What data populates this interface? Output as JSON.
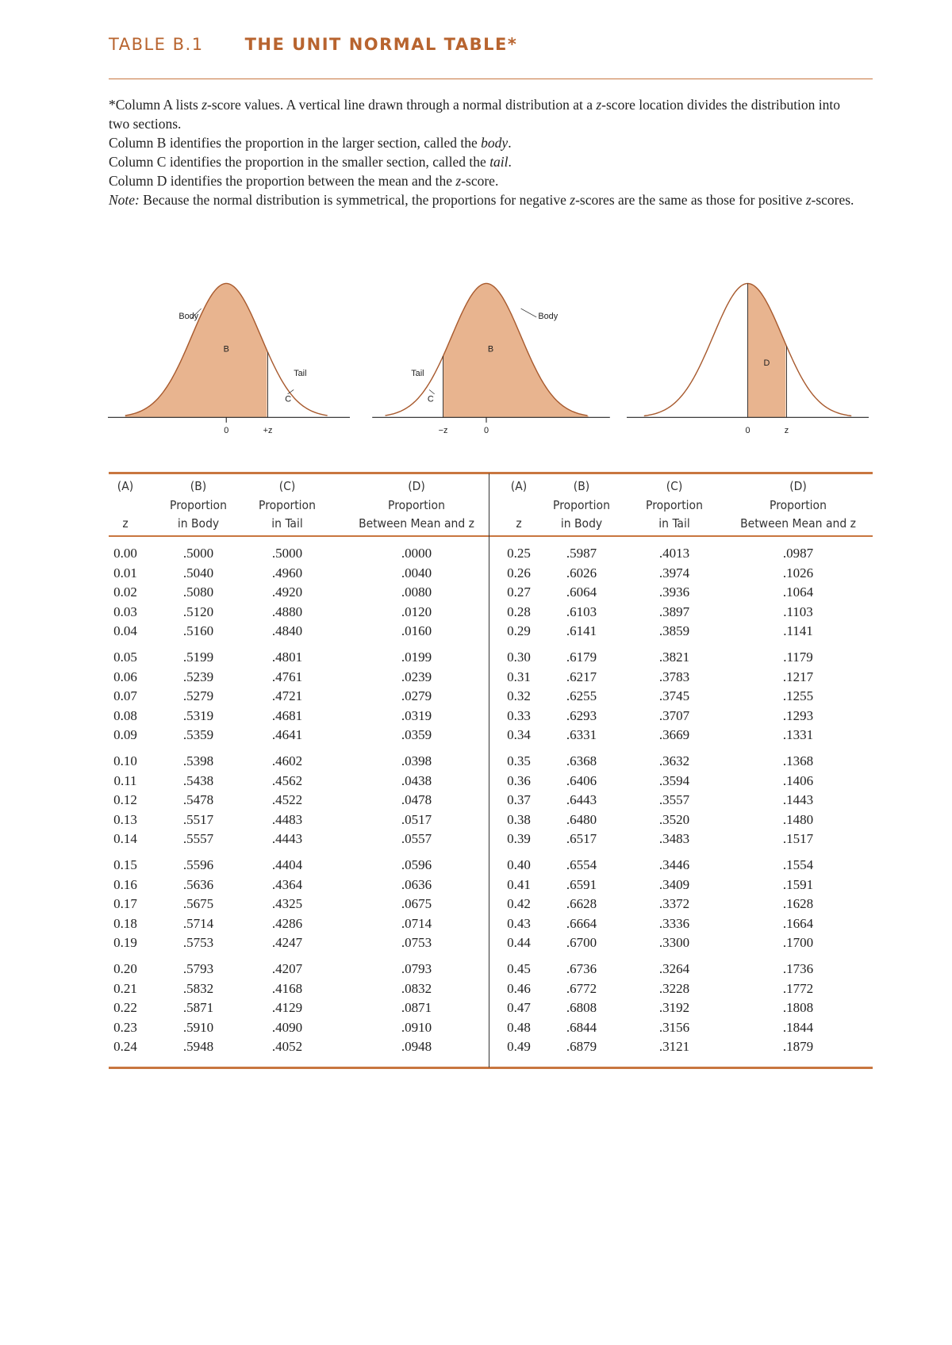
{
  "header": {
    "label": "TABLE B.1",
    "title": "THE UNIT NORMAL TABLE*"
  },
  "notes": [
    [
      "*Column A lists ",
      {
        "text": "z",
        "italic": true
      },
      "-score values. A vertical line drawn through a normal distribution at a ",
      {
        "text": "z",
        "italic": true
      },
      "-score location divides the distribution into two sections."
    ],
    [
      "Column B identifies the proportion in the larger section, called the ",
      {
        "text": "body",
        "italic": true
      },
      "."
    ],
    [
      "Column C identifies the proportion in the smaller section, called the ",
      {
        "text": "tail",
        "italic": true
      },
      "."
    ],
    [
      "Column D identifies the proportion between the mean and the ",
      {
        "text": "z",
        "italic": true
      },
      "-score."
    ],
    [
      {
        "text": "Note:",
        "italic": true
      },
      "  Because the normal distribution is symmetrical, the proportions for negative ",
      {
        "text": "z",
        "italic": true
      },
      "-scores are the same as those for positive ",
      {
        "text": "z",
        "italic": true
      },
      "-scores."
    ]
  ],
  "diagrams": [
    {
      "body": "Body",
      "area": "B",
      "tail": "Tail",
      "tail_area": "C",
      "mean": "0",
      "score": "+z"
    },
    {
      "body": "Body",
      "area": "B",
      "tail": "Tail",
      "tail_area": "C",
      "mean": "0",
      "score": "−z"
    },
    {
      "area": "D",
      "mean": "0",
      "score": "z"
    }
  ],
  "table": {
    "columns": [
      {
        "letter": "(A)",
        "lines": [
          "z"
        ]
      },
      {
        "letter": "(B)",
        "lines": [
          "Proportion",
          "in Body"
        ]
      },
      {
        "letter": "(C)",
        "lines": [
          "Proportion",
          "in Tail"
        ]
      },
      {
        "letter": "(D)",
        "lines": [
          "Proportion",
          "Between Mean and z"
        ]
      }
    ],
    "left": [
      [
        "0.00",
        ".5000",
        ".5000",
        ".0000"
      ],
      [
        "0.01",
        ".5040",
        ".4960",
        ".0040"
      ],
      [
        "0.02",
        ".5080",
        ".4920",
        ".0080"
      ],
      [
        "0.03",
        ".5120",
        ".4880",
        ".0120"
      ],
      [
        "0.04",
        ".5160",
        ".4840",
        ".0160"
      ],
      [
        "0.05",
        ".5199",
        ".4801",
        ".0199"
      ],
      [
        "0.06",
        ".5239",
        ".4761",
        ".0239"
      ],
      [
        "0.07",
        ".5279",
        ".4721",
        ".0279"
      ],
      [
        "0.08",
        ".5319",
        ".4681",
        ".0319"
      ],
      [
        "0.09",
        ".5359",
        ".4641",
        ".0359"
      ],
      [
        "0.10",
        ".5398",
        ".4602",
        ".0398"
      ],
      [
        "0.11",
        ".5438",
        ".4562",
        ".0438"
      ],
      [
        "0.12",
        ".5478",
        ".4522",
        ".0478"
      ],
      [
        "0.13",
        ".5517",
        ".4483",
        ".0517"
      ],
      [
        "0.14",
        ".5557",
        ".4443",
        ".0557"
      ],
      [
        "0.15",
        ".5596",
        ".4404",
        ".0596"
      ],
      [
        "0.16",
        ".5636",
        ".4364",
        ".0636"
      ],
      [
        "0.17",
        ".5675",
        ".4325",
        ".0675"
      ],
      [
        "0.18",
        ".5714",
        ".4286",
        ".0714"
      ],
      [
        "0.19",
        ".5753",
        ".4247",
        ".0753"
      ],
      [
        "0.20",
        ".5793",
        ".4207",
        ".0793"
      ],
      [
        "0.21",
        ".5832",
        ".4168",
        ".0832"
      ],
      [
        "0.22",
        ".5871",
        ".4129",
        ".0871"
      ],
      [
        "0.23",
        ".5910",
        ".4090",
        ".0910"
      ],
      [
        "0.24",
        ".5948",
        ".4052",
        ".0948"
      ]
    ],
    "right": [
      [
        "0.25",
        ".5987",
        ".4013",
        ".0987"
      ],
      [
        "0.26",
        ".6026",
        ".3974",
        ".1026"
      ],
      [
        "0.27",
        ".6064",
        ".3936",
        ".1064"
      ],
      [
        "0.28",
        ".6103",
        ".3897",
        ".1103"
      ],
      [
        "0.29",
        ".6141",
        ".3859",
        ".1141"
      ],
      [
        "0.30",
        ".6179",
        ".3821",
        ".1179"
      ],
      [
        "0.31",
        ".6217",
        ".3783",
        ".1217"
      ],
      [
        "0.32",
        ".6255",
        ".3745",
        ".1255"
      ],
      [
        "0.33",
        ".6293",
        ".3707",
        ".1293"
      ],
      [
        "0.34",
        ".6331",
        ".3669",
        ".1331"
      ],
      [
        "0.35",
        ".6368",
        ".3632",
        ".1368"
      ],
      [
        "0.36",
        ".6406",
        ".3594",
        ".1406"
      ],
      [
        "0.37",
        ".6443",
        ".3557",
        ".1443"
      ],
      [
        "0.38",
        ".6480",
        ".3520",
        ".1480"
      ],
      [
        "0.39",
        ".6517",
        ".3483",
        ".1517"
      ],
      [
        "0.40",
        ".6554",
        ".3446",
        ".1554"
      ],
      [
        "0.41",
        ".6591",
        ".3409",
        ".1591"
      ],
      [
        "0.42",
        ".6628",
        ".3372",
        ".1628"
      ],
      [
        "0.43",
        ".6664",
        ".3336",
        ".1664"
      ],
      [
        "0.44",
        ".6700",
        ".3300",
        ".1700"
      ],
      [
        "0.45",
        ".6736",
        ".3264",
        ".1736"
      ],
      [
        "0.46",
        ".6772",
        ".3228",
        ".1772"
      ],
      [
        "0.47",
        ".6808",
        ".3192",
        ".1808"
      ],
      [
        "0.48",
        ".6844",
        ".3156",
        ".1844"
      ],
      [
        "0.49",
        ".6879",
        ".3121",
        ".1879"
      ]
    ]
  }
}
